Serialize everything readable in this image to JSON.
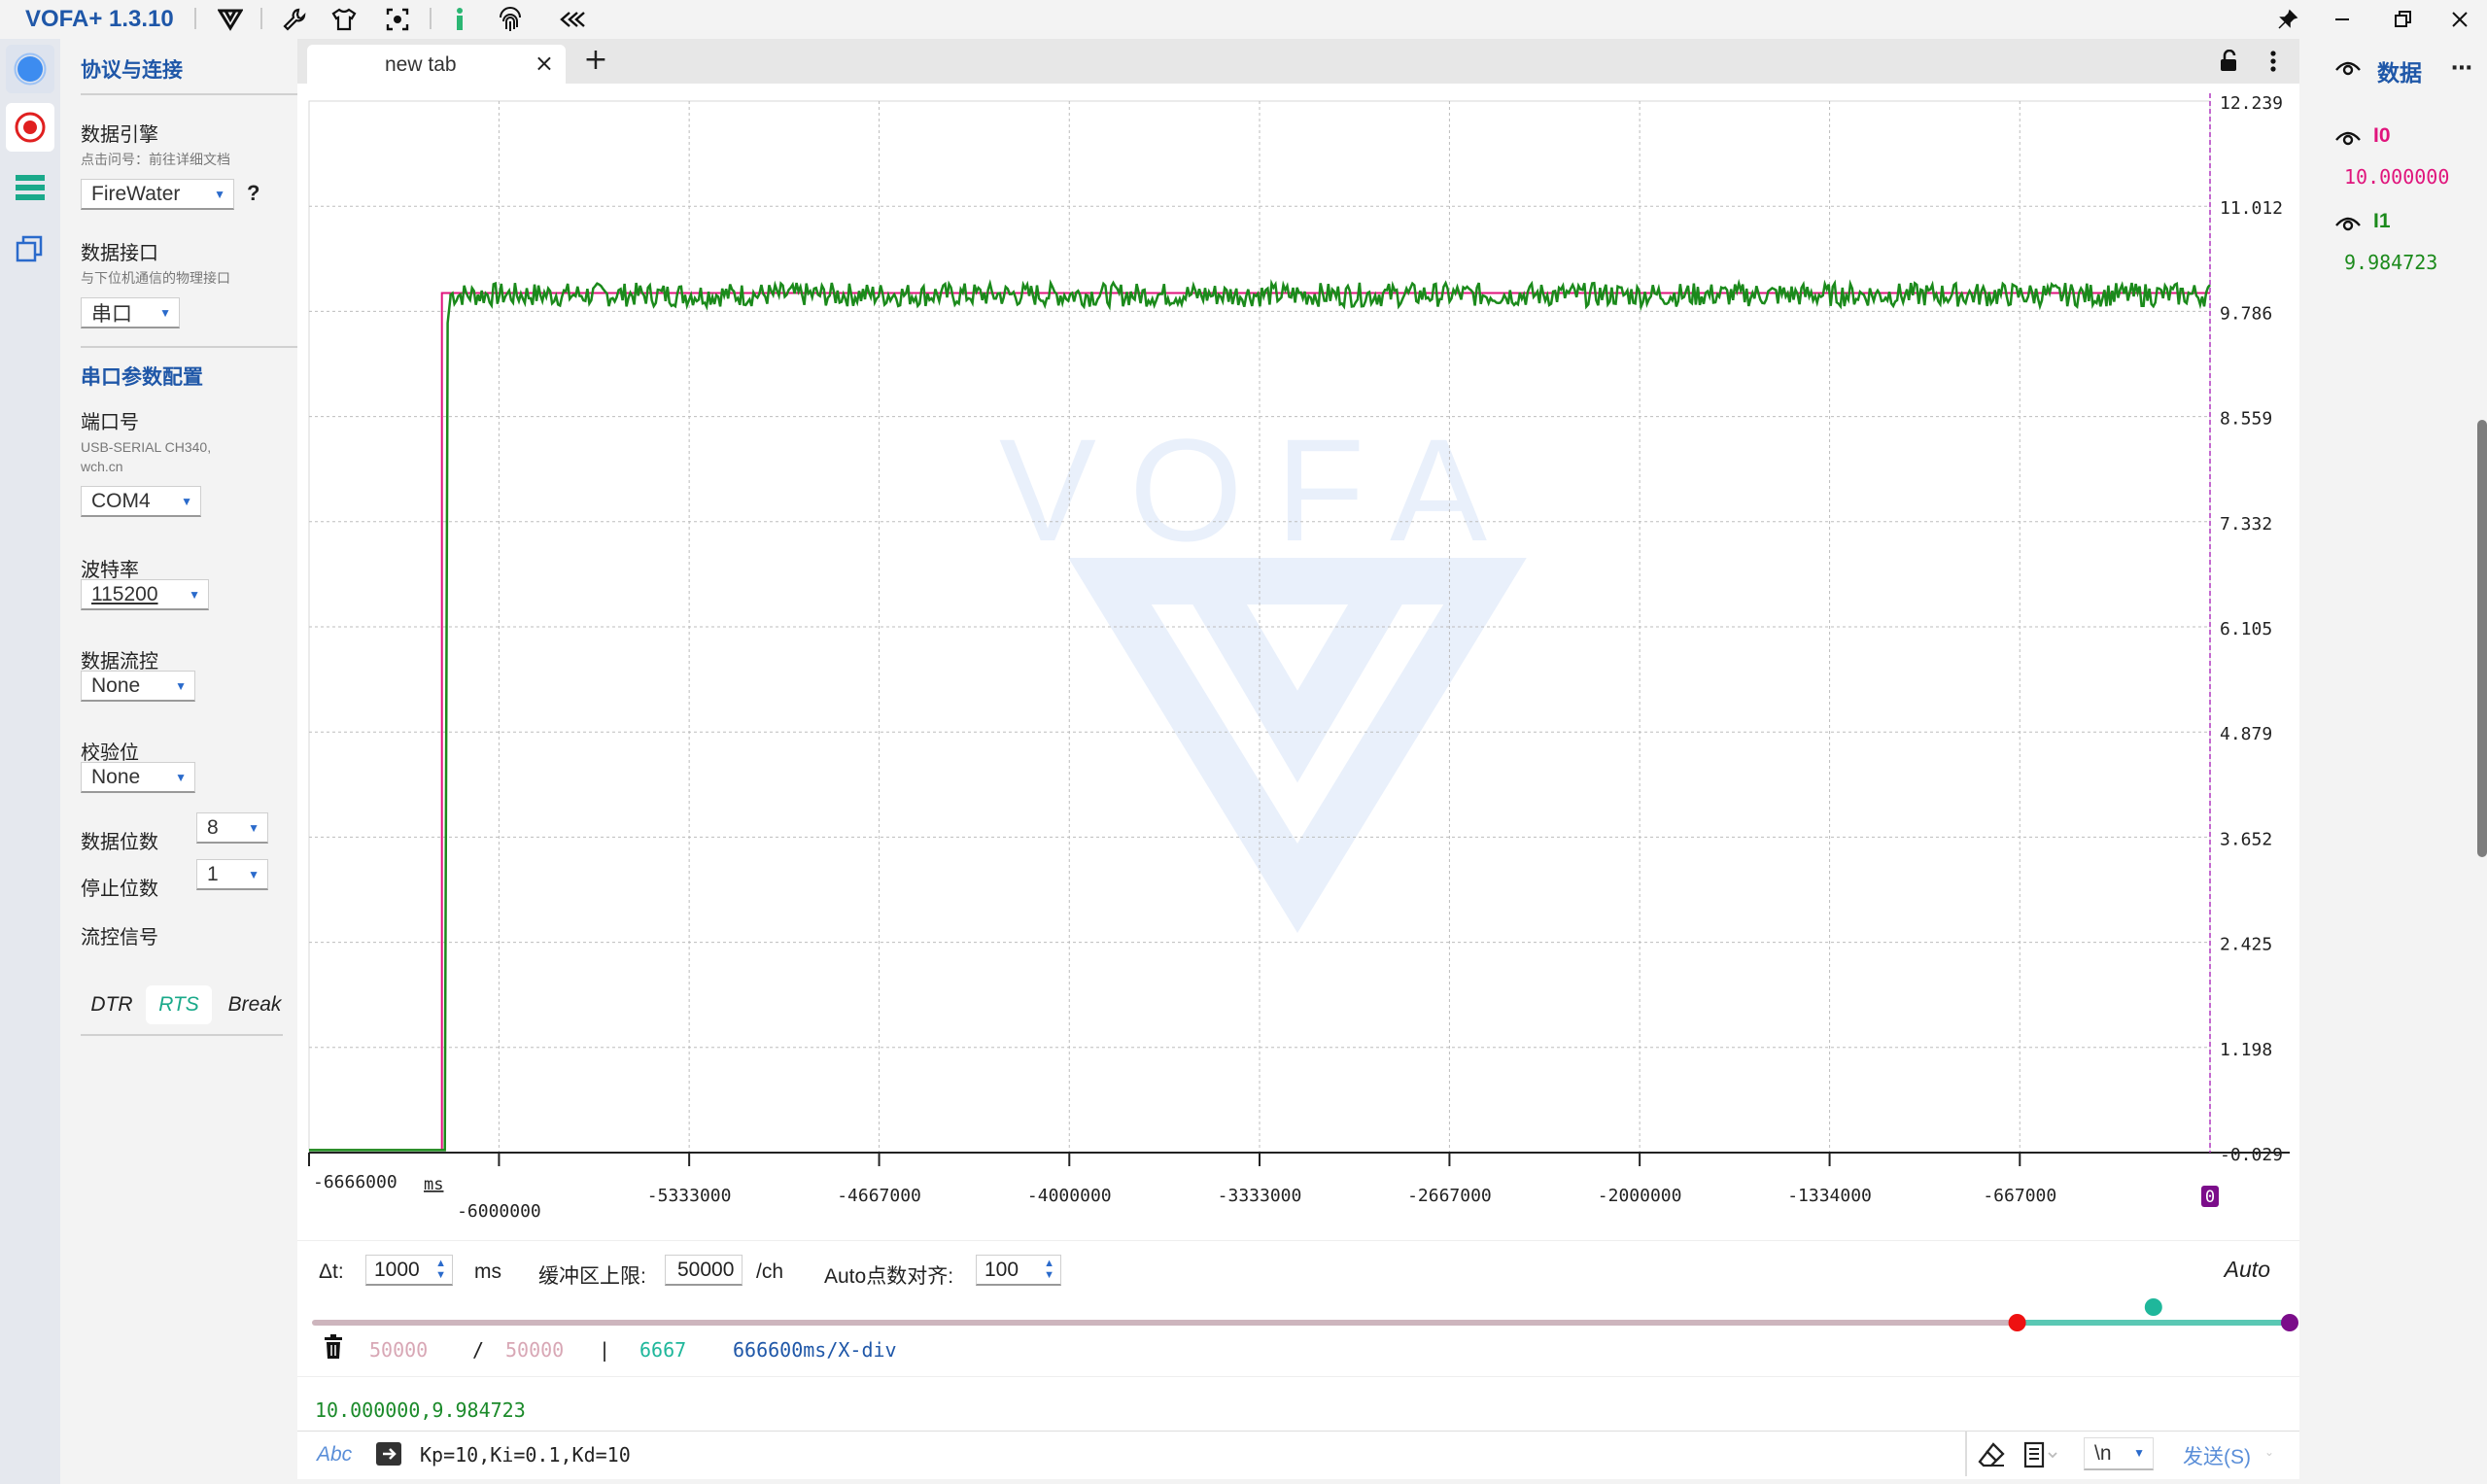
{
  "app": {
    "title": "VOFA+ 1.3.10"
  },
  "toolbar": {
    "icons": [
      "vofa-logo-icon",
      "wrench-icon",
      "tshirt-icon",
      "screenshot-icon",
      "info-icon",
      "fingerprint-icon",
      "collapse-icon"
    ]
  },
  "window": {
    "pin_icon": "pin-icon",
    "minimize": "minimize",
    "restore": "restore",
    "close": "close"
  },
  "rail": {
    "items": [
      "connection",
      "record",
      "widgets",
      "windows"
    ]
  },
  "panel": {
    "section1_title": "协议与连接",
    "engine_label": "数据引擎",
    "engine_hint": "点击问号：前往详细文档",
    "engine_value": "FireWater",
    "engine_help": "?",
    "interface_label": "数据接口",
    "interface_hint": "与下位机通信的物理接口",
    "interface_value": "串口",
    "section2_title": "串口参数配置",
    "port_label": "端口号",
    "port_hint": "USB-SERIAL CH340, wch.cn",
    "port_value": "COM4",
    "baud_label": "波特率",
    "baud_value": "115200",
    "flowctl_label": "数据流控",
    "flowctl_value": "None",
    "parity_label": "校验位",
    "parity_value": "None",
    "databits_label": "数据位数",
    "databits_value": "8",
    "stopbits_label": "停止位数",
    "stopbits_value": "1",
    "signals_label": "流控信号",
    "dtr": "DTR",
    "rts": "RTS",
    "brk": "Break"
  },
  "tabs": [
    {
      "label": "new tab",
      "close": "×"
    }
  ],
  "add_tab": "+",
  "chart_data": {
    "type": "line",
    "watermark": "VOFA",
    "x_unit": "ms",
    "x_ticks": [
      -6666000,
      -6000000,
      -5333000,
      -4667000,
      -4000000,
      -3333000,
      -2667000,
      -2000000,
      -1334000,
      -667000,
      0
    ],
    "x_tick_labels": [
      "-6666000",
      "-6000000",
      "-5333000",
      "-4667000",
      "-4000000",
      "-3333000",
      "-2667000",
      "-2000000",
      "-1334000",
      "-667000",
      "0"
    ],
    "xlim": [
      -6666000,
      0
    ],
    "y_tick_labels": [
      "12.239",
      "11.012",
      "9.786",
      "8.559",
      "7.332",
      "6.105",
      "4.879",
      "3.652",
      "2.425",
      "1.198",
      "-0.029"
    ],
    "ylim": [
      -0.029,
      12.239
    ],
    "grid": true,
    "series": [
      {
        "name": "I0",
        "color": "#e0147c",
        "x": [
          -6666000,
          -6200000,
          -6200000,
          0
        ],
        "y": [
          0,
          0,
          10.0,
          10.0
        ]
      },
      {
        "name": "I1",
        "color": "#1b8a1b",
        "x": [
          -6666000,
          -6190000,
          -6180000,
          -6170000,
          0
        ],
        "y": [
          0,
          0,
          9.65,
          9.95,
          9.98
        ],
        "noise": 0.14
      }
    ]
  },
  "controls": {
    "dt_label": "Δt:",
    "dt_value": "1000",
    "dt_unit": "ms",
    "buffer_label": "缓冲区上限:",
    "buffer_value": "50000",
    "buffer_unit": "/ch",
    "auto_align_label": "Auto点数对齐:",
    "auto_align_value": "100",
    "auto": "Auto",
    "range_start": 0.862,
    "range_mid": 0.931,
    "range_end": 1.0
  },
  "stats": {
    "count_a": "50000",
    "slash": "/",
    "count_b": "50000",
    "bar": "|",
    "points": "6667",
    "div": "666600ms/X-div"
  },
  "rx": {
    "text": "10.000000,9.984723"
  },
  "send": {
    "mode": "Abc",
    "input": "Kp=10,Ki=0.1,Kd=10",
    "newline": "\\n",
    "send_label": "发送(S)"
  },
  "datapanel": {
    "title": "数据",
    "channels": [
      {
        "name": "I0",
        "value": "10.000000",
        "color": "#e0147c"
      },
      {
        "name": "I1",
        "value": "9.984723",
        "color": "#1b8a1b"
      }
    ]
  }
}
